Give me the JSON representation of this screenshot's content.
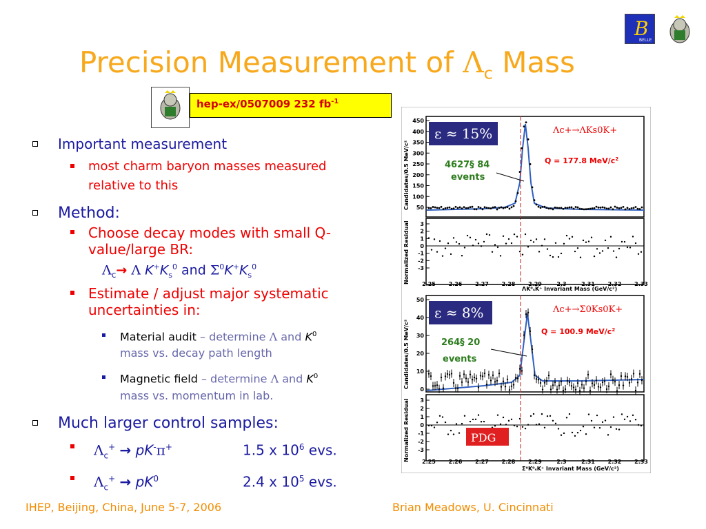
{
  "slide": {
    "title_main": "Precision Measurement of",
    "title_lambda": "Λ",
    "title_sub": "c",
    "title_end": "Mass"
  },
  "reference": {
    "text": "hep-ex/0507009  232 fb",
    "sup": "-1"
  },
  "bullets": {
    "important": "Important measurement",
    "important_sub": "most charm baryon masses measured relative to this",
    "method": "Method:",
    "choose": "Choose decay modes with small Q-value/large BR:",
    "modes": {
      "lambda_c": "Λ",
      "c_sub": "c",
      "arrow": "→",
      "lambda": "Λ",
      "kp": "K",
      "kp_sup": "+",
      "ks": "K",
      "ks_sub": "s",
      "ks_sup": "0",
      "and": "and",
      "sigma": "Σ",
      "sigma_sup": "0",
      "k2": "K",
      "k2_sup": "+",
      "ks2": "K",
      "ks2_sub": "s",
      "ks2_sup": "0"
    },
    "estimate": "Estimate / adjust major systematic uncertainties in:",
    "material_a": "Material audit",
    "material_b": " – determine ",
    "material_lambda": "Λ",
    "material_c": " and ",
    "material_k": "K",
    "material_k_sup": "0",
    "material_d": "mass vs. decay path length",
    "magnetic_a": "Magnetic field",
    "magnetic_b": " – determine ",
    "magnetic_lambda": "Λ",
    "magnetic_c": " and ",
    "magnetic_k": "K",
    "magnetic_k_sup": "0",
    "magnetic_d": "mass vs. momentum in lab.",
    "control": "Much larger control samples:",
    "sample1": {
      "lambda": "Λ",
      "sub": "c",
      "sup": "+",
      "arrow": "→",
      "decay": "pK",
      "decay_sup": "-",
      "pi": "π",
      "pi_sup": "+",
      "count": "1.5 x 10",
      "exp": "6",
      "unit": " evs."
    },
    "sample2": {
      "lambda": "Λ",
      "sub": "c",
      "sup": "+",
      "arrow": "→",
      "decay": "pK",
      "decay_sup": "0",
      "count": "2.4 x 10",
      "exp": "5",
      "unit": " evs."
    }
  },
  "plots": {
    "top": {
      "eff": "ε ≈ 15%",
      "channel": "Λc+→ΛKs0K+",
      "q": "Q = 177.8 MeV/c",
      "q_sup": "2",
      "events1": "4627§ 84",
      "events2": "events",
      "ylabel": "Candidates/0.5 MeV/c²",
      "resid_label": "Normalized Residual",
      "yticks": [
        "450",
        "400",
        "350",
        "300",
        "250",
        "200",
        "150",
        "100",
        "50"
      ],
      "rticks": [
        "3",
        "2",
        "1",
        "0",
        "-1",
        "-2",
        "-3"
      ],
      "xticks": [
        "2.25",
        "2.26",
        "2.27",
        "2.28",
        "2.29",
        "2.3",
        "2.31",
        "2.32",
        "2.33"
      ],
      "xlabel": "ΛK⁰ₛK⁺ Invariant Mass (GeV/c²)"
    },
    "bottom": {
      "eff": "ε ≈ 8%",
      "channel": "Λc+→Σ0Ks0K+",
      "q": "Q = 100.9 MeV/c",
      "q_sup": "2",
      "events1": "264§ 20",
      "events2": "events",
      "ylabel": "Candidates/0.5 MeV/c²",
      "resid_label": "Normalized Residual",
      "yticks": [
        "50",
        "40",
        "30",
        "20",
        "10",
        "0"
      ],
      "rticks": [
        "3",
        "2",
        "1",
        "0",
        "-1",
        "-2",
        "-3"
      ],
      "xticks": [
        "2.25",
        "2.26",
        "2.27",
        "2.28",
        "2.29",
        "2.3",
        "2.31",
        "2.32",
        "2.33"
      ],
      "xlabel": "Σ⁰K⁰ₛK⁺ Invariant Mass (GeV/c²)",
      "pdg": "PDG"
    }
  },
  "logos": {
    "belle": "BELLE"
  },
  "footer": {
    "left": "IHEP, Beijing, China, June 5-7, 2006",
    "right": "Brian Meadows, U. Cincinnati"
  },
  "colors": {
    "title": "#f7a81b",
    "bullet_blue": "#1a1aa0",
    "sub_red": "#ee0000",
    "footer": "#f28c00",
    "ref_bg": "#ffff00"
  }
}
